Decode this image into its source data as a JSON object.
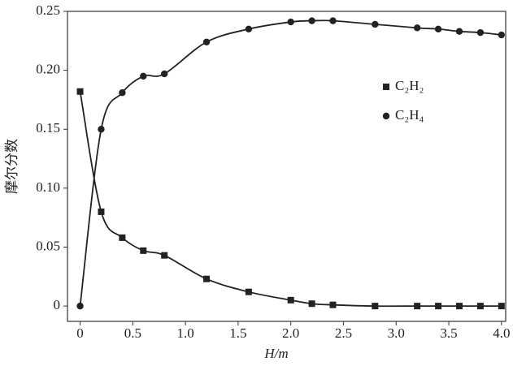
{
  "chart_data": {
    "type": "scatter",
    "x_label": "H/m",
    "y_label": "摩尔分数",
    "x": [
      0,
      0.2,
      0.4,
      0.6,
      0.8,
      1.2,
      1.6,
      2.0,
      2.2,
      2.4,
      2.8,
      3.2,
      3.4,
      3.6,
      3.8,
      4.0
    ],
    "series": [
      {
        "name": "C₂H₂",
        "color": "#222222",
        "marker": "square",
        "values": [
          0.182,
          0.08,
          0.058,
          0.047,
          0.043,
          0.023,
          0.012,
          0.005,
          0.002,
          0.001,
          0,
          0,
          0,
          0,
          0,
          0
        ]
      },
      {
        "name": "C₂H₄",
        "color": "#222222",
        "marker": "circle",
        "values": [
          0,
          0.15,
          0.181,
          0.195,
          0.197,
          0.224,
          0.235,
          0.241,
          0.242,
          0.242,
          0.239,
          0.236,
          0.235,
          0.233,
          0.232,
          0.23
        ]
      }
    ],
    "xlim": [
      -0.12,
      4.04
    ],
    "ylim": [
      -0.013,
      0.25
    ],
    "xticks": [
      0,
      0.5,
      {
        "value": 1.0,
        "label": "1.0"
      },
      1.5,
      {
        "value": 2.0,
        "label": "2.0"
      },
      2.5,
      {
        "value": 3.0,
        "label": "3.0"
      },
      3.5,
      {
        "value": 4.0,
        "label": "4.0"
      }
    ],
    "yticks": [
      0,
      0.05,
      {
        "value": 0.1,
        "label": "0.10"
      },
      0.15,
      {
        "value": 0.2,
        "label": "0.20"
      },
      0.25
    ],
    "legend": "upper-right",
    "smooth_line": true
  }
}
